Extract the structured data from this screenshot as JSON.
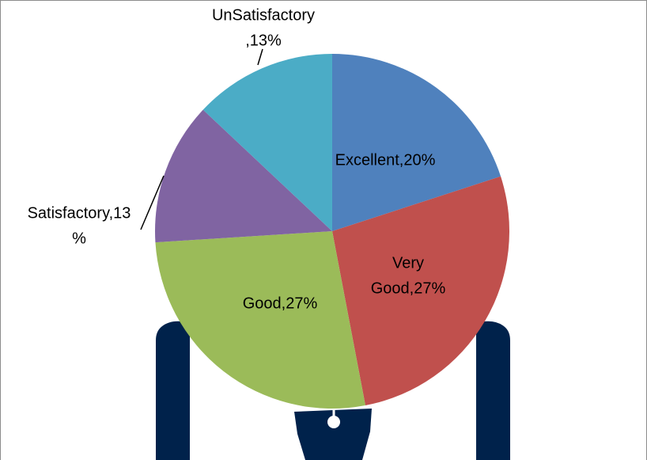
{
  "chart_data": {
    "type": "pie",
    "values": [
      20,
      27,
      27,
      13,
      13
    ],
    "value_labels": [
      [
        "Excellent,20%"
      ],
      [
        "Very",
        "Good,27%"
      ],
      [
        "Good,27%"
      ],
      [
        "Satisfactory,13",
        "%"
      ],
      [
        "UnSatisfactory",
        ",13%"
      ]
    ],
    "colors": [
      "#4f81bd",
      "#c0504d",
      "#9bbb59",
      "#8064a2",
      "#4bacc6"
    ]
  }
}
